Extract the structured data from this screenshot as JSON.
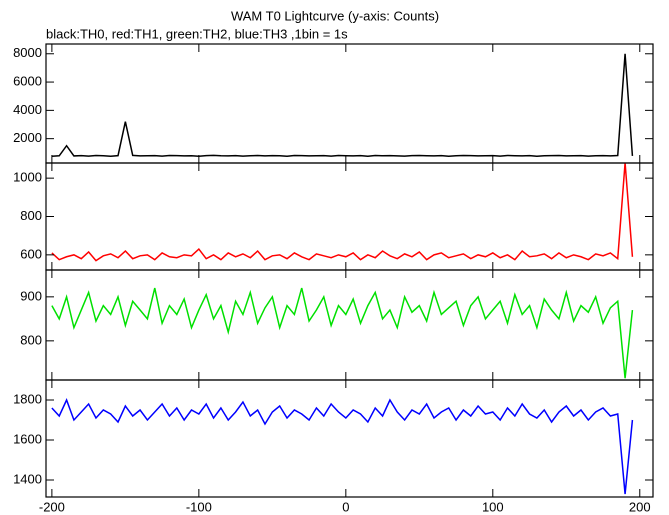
{
  "title": "WAM T0 Lightcurve (y-axis: Counts)",
  "subtitle": "black:TH0, red:TH1, green:TH2, blue:TH3 ,1bin = 1s",
  "chart_data": [
    {
      "type": "line",
      "x": [
        -200,
        -195,
        -190,
        -185,
        -180,
        -175,
        -170,
        -165,
        -160,
        -155,
        -150,
        -145,
        -140,
        -135,
        -130,
        -125,
        -120,
        -115,
        -110,
        -105,
        -100,
        -95,
        -90,
        -85,
        -80,
        -75,
        -70,
        -65,
        -60,
        -55,
        -50,
        -45,
        -40,
        -35,
        -30,
        -25,
        -20,
        -15,
        -10,
        -5,
        0,
        5,
        10,
        15,
        20,
        25,
        30,
        35,
        40,
        45,
        50,
        55,
        60,
        65,
        70,
        75,
        80,
        85,
        90,
        95,
        100,
        105,
        110,
        115,
        120,
        125,
        130,
        135,
        140,
        145,
        150,
        155,
        160,
        165,
        170,
        175,
        180,
        185,
        190,
        195
      ],
      "series": [
        {
          "color": "#000000",
          "values": [
            760,
            790,
            1500,
            780,
            800,
            770,
            810,
            790,
            760,
            800,
            3200,
            820,
            780,
            790,
            800,
            770,
            810,
            800,
            780,
            790,
            760,
            800,
            820,
            790,
            780,
            800,
            770,
            790,
            810,
            780,
            800,
            790,
            760,
            810,
            800,
            780,
            790,
            800,
            770,
            810,
            790,
            780,
            800,
            760,
            810,
            790,
            800,
            780,
            770,
            800,
            810,
            790,
            780,
            800,
            760,
            790,
            810,
            800,
            780,
            790,
            800,
            770,
            810,
            790,
            780,
            800,
            760,
            790,
            800,
            810,
            780,
            790,
            800,
            770,
            790,
            800,
            780,
            810,
            8000,
            780
          ]
        }
      ],
      "xlim": [
        -204,
        209
      ],
      "ylim": [
        280,
        8690
      ],
      "yticks": [
        2000,
        4000,
        6000,
        8000
      ]
    },
    {
      "type": "line",
      "x": [
        -200,
        -195,
        -190,
        -185,
        -180,
        -175,
        -170,
        -165,
        -160,
        -155,
        -150,
        -145,
        -140,
        -135,
        -130,
        -125,
        -120,
        -115,
        -110,
        -105,
        -100,
        -95,
        -90,
        -85,
        -80,
        -75,
        -70,
        -65,
        -60,
        -55,
        -50,
        -45,
        -40,
        -35,
        -30,
        -25,
        -20,
        -15,
        -10,
        -5,
        0,
        5,
        10,
        15,
        20,
        25,
        30,
        35,
        40,
        45,
        50,
        55,
        60,
        65,
        70,
        75,
        80,
        85,
        90,
        95,
        100,
        105,
        110,
        115,
        120,
        125,
        130,
        135,
        140,
        145,
        150,
        155,
        160,
        165,
        170,
        175,
        180,
        185,
        190,
        195
      ],
      "series": [
        {
          "color": "#ff0000",
          "values": [
            610,
            575,
            590,
            600,
            580,
            615,
            570,
            595,
            605,
            585,
            620,
            580,
            595,
            600,
            575,
            610,
            590,
            585,
            600,
            595,
            630,
            580,
            600,
            575,
            610,
            590,
            605,
            585,
            620,
            575,
            595,
            600,
            580,
            610,
            590,
            575,
            605,
            595,
            585,
            600,
            590,
            610,
            575,
            600,
            585,
            620,
            595,
            580,
            605,
            590,
            615,
            575,
            600,
            610,
            585,
            595,
            605,
            580,
            600,
            590,
            610,
            585,
            600,
            575,
            620,
            590,
            595,
            605,
            580,
            610,
            585,
            600,
            590,
            575,
            605,
            595,
            610,
            580,
            1080,
            590
          ]
        }
      ],
      "xlim": [
        -204,
        209
      ],
      "ylim": [
        521,
        1079
      ],
      "yticks": [
        600,
        800,
        1000
      ]
    },
    {
      "type": "line",
      "x": [
        -200,
        -195,
        -190,
        -185,
        -180,
        -175,
        -170,
        -165,
        -160,
        -155,
        -150,
        -145,
        -140,
        -135,
        -130,
        -125,
        -120,
        -115,
        -110,
        -105,
        -100,
        -95,
        -90,
        -85,
        -80,
        -75,
        -70,
        -65,
        -60,
        -55,
        -50,
        -45,
        -40,
        -35,
        -30,
        -25,
        -20,
        -15,
        -10,
        -5,
        0,
        5,
        10,
        15,
        20,
        25,
        30,
        35,
        40,
        45,
        50,
        55,
        60,
        65,
        70,
        75,
        80,
        85,
        90,
        95,
        100,
        105,
        110,
        115,
        120,
        125,
        130,
        135,
        140,
        145,
        150,
        155,
        160,
        165,
        170,
        175,
        180,
        185,
        190,
        195
      ],
      "series": [
        {
          "color": "#00e000",
          "values": [
            880,
            850,
            900,
            830,
            870,
            910,
            845,
            880,
            860,
            900,
            835,
            890,
            870,
            850,
            920,
            840,
            880,
            860,
            895,
            830,
            870,
            905,
            850,
            880,
            820,
            890,
            860,
            910,
            840,
            875,
            900,
            830,
            880,
            860,
            920,
            845,
            870,
            900,
            835,
            880,
            860,
            895,
            840,
            880,
            910,
            850,
            870,
            830,
            900,
            865,
            880,
            845,
            910,
            860,
            875,
            890,
            835,
            880,
            900,
            850,
            870,
            890,
            840,
            905,
            860,
            880,
            830,
            895,
            870,
            850,
            910,
            845,
            880,
            865,
            900,
            840,
            875,
            890,
            715,
            870
          ]
        }
      ],
      "xlim": [
        -204,
        209
      ],
      "ylim": [
        711,
        961
      ],
      "yticks": [
        800,
        900
      ]
    },
    {
      "type": "line",
      "x": [
        -200,
        -195,
        -190,
        -185,
        -180,
        -175,
        -170,
        -165,
        -160,
        -155,
        -150,
        -145,
        -140,
        -135,
        -130,
        -125,
        -120,
        -115,
        -110,
        -105,
        -100,
        -95,
        -90,
        -85,
        -80,
        -75,
        -70,
        -65,
        -60,
        -55,
        -50,
        -45,
        -40,
        -35,
        -30,
        -25,
        -20,
        -15,
        -10,
        -5,
        0,
        5,
        10,
        15,
        20,
        25,
        30,
        35,
        40,
        45,
        50,
        55,
        60,
        65,
        70,
        75,
        80,
        85,
        90,
        95,
        100,
        105,
        110,
        115,
        120,
        125,
        130,
        135,
        140,
        145,
        150,
        155,
        160,
        165,
        170,
        175,
        180,
        185,
        190,
        195
      ],
      "series": [
        {
          "color": "#0000ff",
          "values": [
            1760,
            1720,
            1800,
            1700,
            1740,
            1780,
            1710,
            1750,
            1730,
            1690,
            1770,
            1720,
            1750,
            1700,
            1740,
            1780,
            1720,
            1760,
            1700,
            1750,
            1730,
            1780,
            1710,
            1760,
            1700,
            1740,
            1790,
            1720,
            1750,
            1680,
            1740,
            1770,
            1710,
            1750,
            1730,
            1700,
            1760,
            1720,
            1780,
            1740,
            1710,
            1750,
            1730,
            1690,
            1760,
            1720,
            1800,
            1740,
            1700,
            1750,
            1730,
            1780,
            1710,
            1740,
            1760,
            1700,
            1750,
            1720,
            1770,
            1730,
            1740,
            1700,
            1760,
            1720,
            1780,
            1730,
            1710,
            1750,
            1690,
            1740,
            1770,
            1720,
            1750,
            1700,
            1740,
            1760,
            1720,
            1730,
            1330,
            1700
          ]
        }
      ],
      "xlim": [
        -204,
        209
      ],
      "ylim": [
        1315,
        1900
      ],
      "yticks": [
        1400,
        1600,
        1800
      ],
      "xticks": [
        -200,
        -100,
        0,
        100,
        200
      ]
    }
  ]
}
